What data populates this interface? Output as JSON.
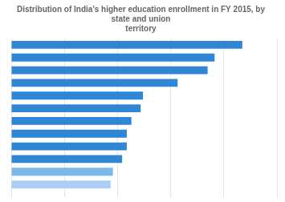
{
  "chart_data": {
    "type": "bar",
    "orientation": "horizontal",
    "title": "Distribution of India's higher education enrollment in FY 2015, by state and union\nterritory",
    "categories": [
      null,
      null,
      null,
      null,
      null,
      null,
      null,
      null,
      null,
      null,
      null,
      null
    ],
    "values": [
      100,
      88,
      85,
      72,
      57,
      56,
      52,
      50,
      50,
      48,
      44,
      43
    ],
    "colors": [
      "#2E86D4",
      "#2E86D4",
      "#2E86D4",
      "#2E86D4",
      "#2E86D4",
      "#2E86D4",
      "#2E86D4",
      "#2E86D4",
      "#2E86D4",
      "#2E86D4",
      "#7BB8EC",
      "#AACEF5"
    ],
    "xlim": [
      0,
      115
    ],
    "xticks": [
      0,
      23,
      46,
      69,
      92,
      115
    ],
    "grid": true,
    "tick_labels": false
  }
}
